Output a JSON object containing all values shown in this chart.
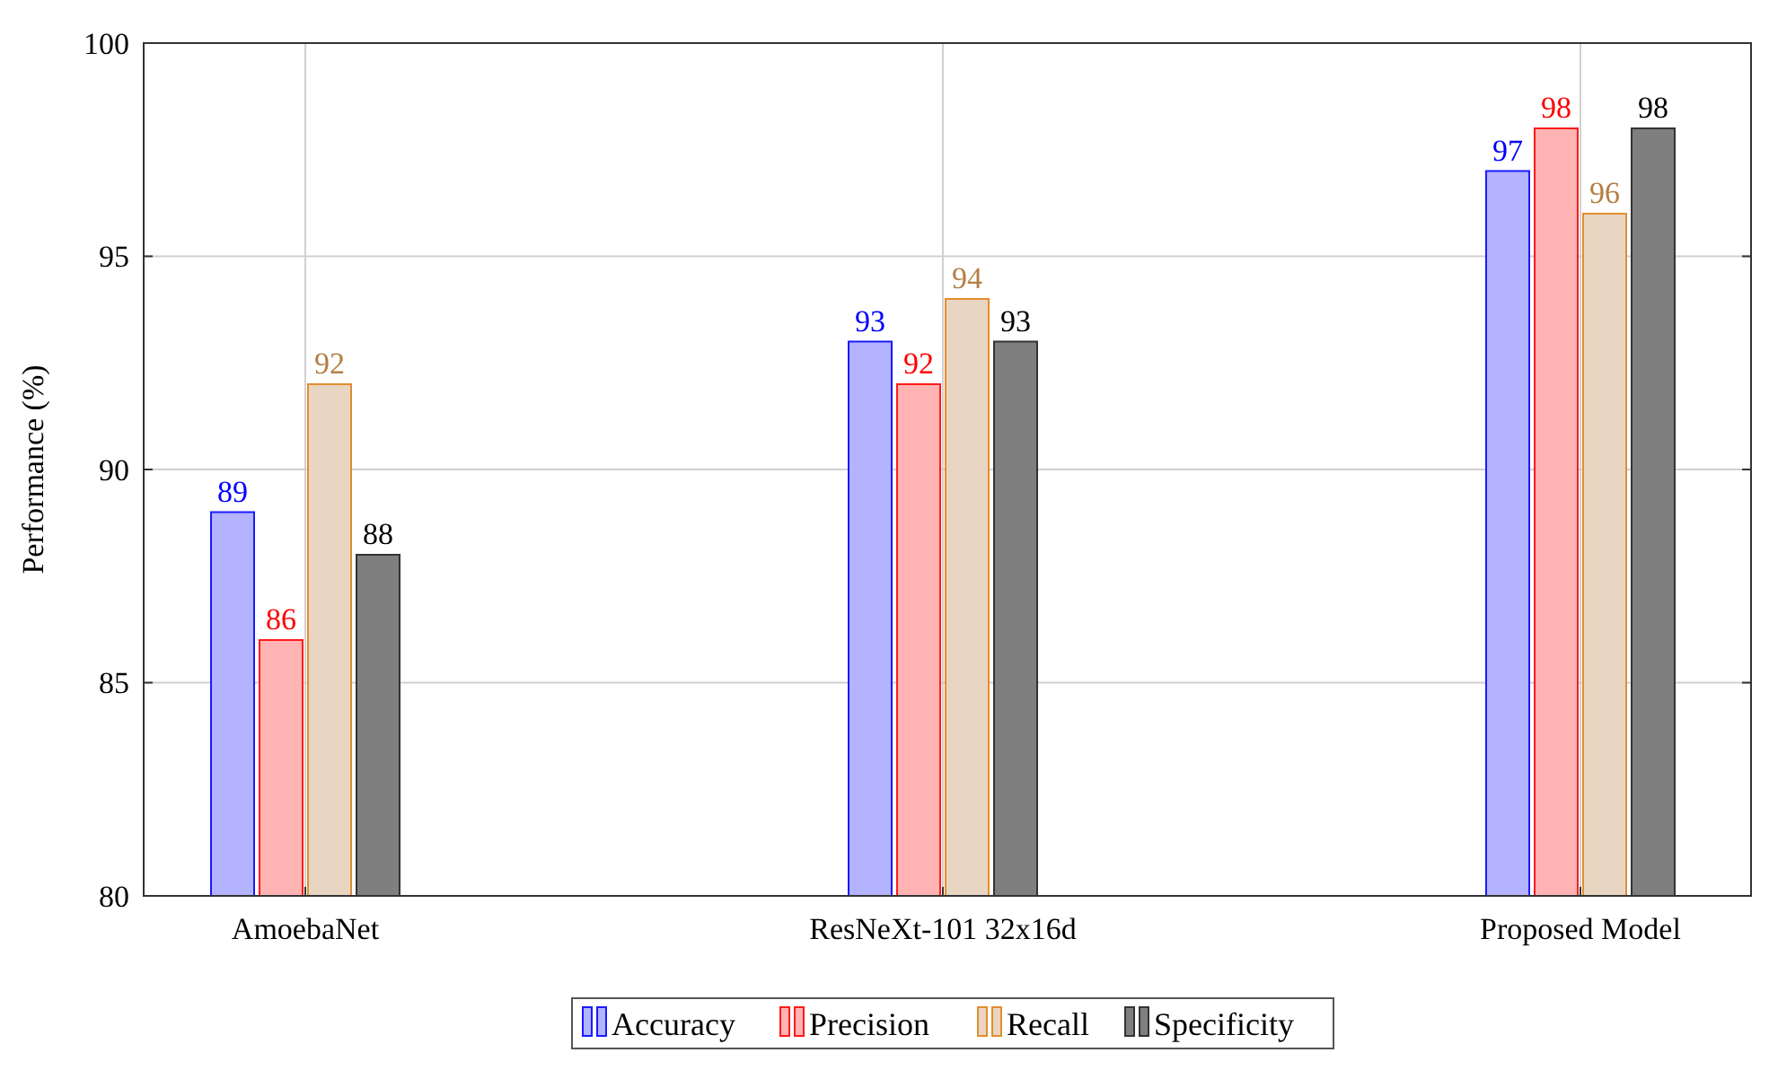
{
  "chart_data": {
    "type": "bar",
    "ylabel": "Performance (%)",
    "categories": [
      "AmoebaNet",
      "ResNeXt-101 32x16d",
      "Proposed Model"
    ],
    "series": [
      {
        "name": "Accuracy",
        "color": "#b3b3ff",
        "values": [
          89,
          93,
          97
        ]
      },
      {
        "name": "Precision",
        "color": "#ffb3b3",
        "values": [
          86,
          92,
          98
        ]
      },
      {
        "name": "Recall",
        "color": "#e8d6c2",
        "values": [
          92,
          94,
          96
        ]
      },
      {
        "name": "Specificity",
        "color": "#7f7f7f",
        "values": [
          88,
          93,
          98
        ]
      }
    ],
    "ylim": [
      80,
      100
    ],
    "yticks": [
      80,
      85,
      90,
      95,
      100
    ],
    "grid": true,
    "legend": "bottom",
    "data_labels": true
  }
}
